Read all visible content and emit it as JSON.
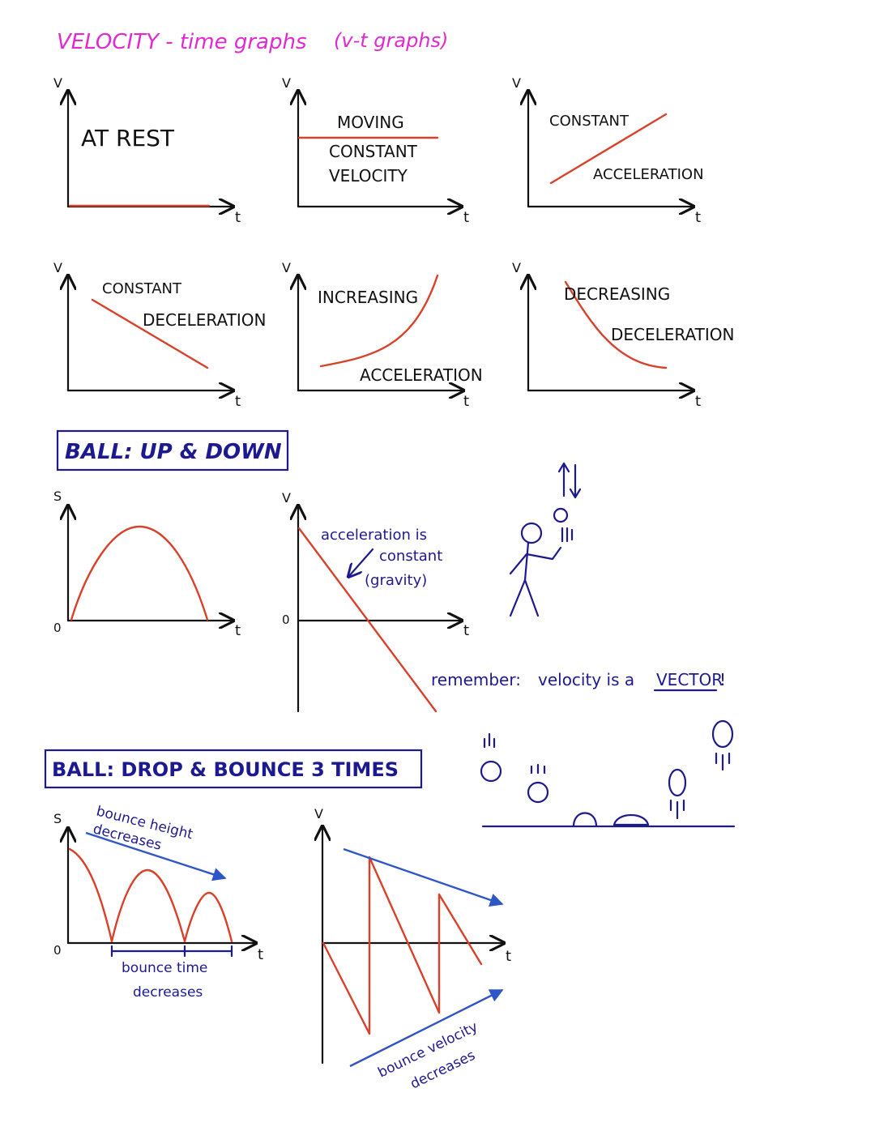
{
  "title": "VELOCITY - time graphs",
  "subtitle": "(v-t graphs)",
  "axis": {
    "v": "V",
    "t": "t",
    "s": "S",
    "zero": "0"
  },
  "graphs": {
    "at_rest": "AT REST",
    "moving": [
      "MOVING",
      "CONSTANT",
      "VELOCITY"
    ],
    "constant_accel": [
      "CONSTANT",
      "ACCELERATION"
    ],
    "constant_decel": [
      "CONSTANT",
      "DECELERATION"
    ],
    "increasing_accel": [
      "INCREASING",
      "ACCELERATION"
    ],
    "decreasing_decel": [
      "DECREASING",
      "DECELERATION"
    ]
  },
  "ball_updown": {
    "heading": "BALL: UP & DOWN",
    "note": [
      "acceleration is",
      "constant",
      "(gravity)"
    ],
    "remember_prefix": "remember:",
    "remember_mid": "velocity is a",
    "remember_vector": "VECTOR",
    "remember_end": "!"
  },
  "ball_bounce": {
    "heading": "BALL: DROP & BOUNCE 3 TIMES",
    "height_note": [
      "bounce height",
      "decreases"
    ],
    "time_note": [
      "bounce time",
      "decreases"
    ],
    "velocity_note": [
      "bounce velocity",
      "decreases"
    ]
  },
  "colors": {
    "title": "#e02ad0",
    "curve": "#d8412a",
    "ink": "#1d1a8f",
    "arrow": "#2f56c6"
  },
  "icons": [
    "up-down-arrows-icon",
    "stick-figure-icon",
    "bouncing-ball-icon"
  ]
}
